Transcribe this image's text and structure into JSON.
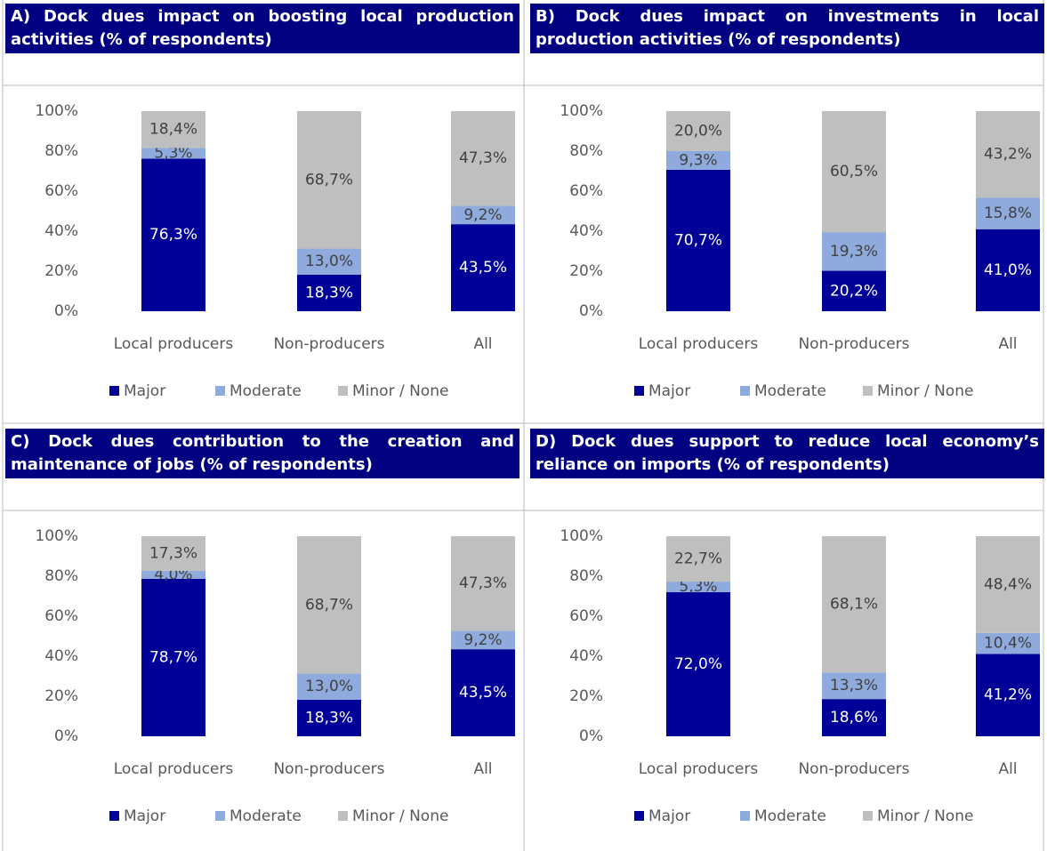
{
  "chart_data": [
    {
      "type": "bar",
      "stacked": true,
      "title": "A) Dock dues impact on boosting local production activities (% of respondents)",
      "categories": [
        "Local producers",
        "Non-producers",
        "All"
      ],
      "series": [
        {
          "name": "Major",
          "color": "#000099",
          "values": [
            76.3,
            18.3,
            43.5
          ],
          "value_labels": [
            "76,3%",
            "18,3%",
            "43,5%"
          ]
        },
        {
          "name": "Moderate",
          "color": "#8faadc",
          "values": [
            5.3,
            13.0,
            9.2
          ],
          "value_labels": [
            "5,3%",
            "13,0%",
            "9,2%"
          ]
        },
        {
          "name": "Minor / None",
          "color": "#bfbfbf",
          "values": [
            18.4,
            68.7,
            47.3
          ],
          "value_labels": [
            "18,4%",
            "68,7%",
            "47,3%"
          ]
        }
      ],
      "ylim": [
        0,
        100
      ],
      "yticks": [
        {
          "value": 0,
          "label": "0%"
        },
        {
          "value": 20,
          "label": "20%"
        },
        {
          "value": 40,
          "label": "40%"
        },
        {
          "value": 60,
          "label": "60%"
        },
        {
          "value": 80,
          "label": "80%"
        },
        {
          "value": 100,
          "label": "100%"
        }
      ],
      "legend": "bottom"
    },
    {
      "type": "bar",
      "stacked": true,
      "title": "B) Dock dues impact on investments in local production activities (% of respondents)",
      "categories": [
        "Local producers",
        "Non-producers",
        "All"
      ],
      "series": [
        {
          "name": "Major",
          "color": "#000099",
          "values": [
            70.7,
            20.2,
            41.0
          ],
          "value_labels": [
            "70,7%",
            "20,2%",
            "41,0%"
          ]
        },
        {
          "name": "Moderate",
          "color": "#8faadc",
          "values": [
            9.3,
            19.3,
            15.8
          ],
          "value_labels": [
            "9,3%",
            "19,3%",
            "15,8%"
          ]
        },
        {
          "name": "Minor / None",
          "color": "#bfbfbf",
          "values": [
            20.0,
            60.5,
            43.2
          ],
          "value_labels": [
            "20,0%",
            "60,5%",
            "43,2%"
          ]
        }
      ],
      "ylim": [
        0,
        100
      ],
      "yticks": [
        {
          "value": 0,
          "label": "0%"
        },
        {
          "value": 20,
          "label": "20%"
        },
        {
          "value": 40,
          "label": "40%"
        },
        {
          "value": 60,
          "label": "60%"
        },
        {
          "value": 80,
          "label": "80%"
        },
        {
          "value": 100,
          "label": "100%"
        }
      ],
      "legend": "bottom"
    },
    {
      "type": "bar",
      "stacked": true,
      "title": "C) Dock dues contribution to the creation and maintenance of jobs (% of respondents)",
      "categories": [
        "Local producers",
        "Non-producers",
        "All"
      ],
      "series": [
        {
          "name": "Major",
          "color": "#000099",
          "values": [
            78.7,
            18.3,
            43.5
          ],
          "value_labels": [
            "78,7%",
            "18,3%",
            "43,5%"
          ]
        },
        {
          "name": "Moderate",
          "color": "#8faadc",
          "values": [
            4.0,
            13.0,
            9.2
          ],
          "value_labels": [
            "4,0%",
            "13,0%",
            "9,2%"
          ]
        },
        {
          "name": "Minor / None",
          "color": "#bfbfbf",
          "values": [
            17.3,
            68.7,
            47.3
          ],
          "value_labels": [
            "17,3%",
            "68,7%",
            "47,3%"
          ]
        }
      ],
      "ylim": [
        0,
        100
      ],
      "yticks": [
        {
          "value": 0,
          "label": "0%"
        },
        {
          "value": 20,
          "label": "20%"
        },
        {
          "value": 40,
          "label": "40%"
        },
        {
          "value": 60,
          "label": "60%"
        },
        {
          "value": 80,
          "label": "80%"
        },
        {
          "value": 100,
          "label": "100%"
        }
      ],
      "legend": "bottom"
    },
    {
      "type": "bar",
      "stacked": true,
      "title": "D) Dock dues support to reduce local economy’s reliance on imports (% of respondents)",
      "categories": [
        "Local producers",
        "Non-producers",
        "All"
      ],
      "series": [
        {
          "name": "Major",
          "color": "#000099",
          "values": [
            72.0,
            18.6,
            41.2
          ],
          "value_labels": [
            "72,0%",
            "18,6%",
            "41,2%"
          ]
        },
        {
          "name": "Moderate",
          "color": "#8faadc",
          "values": [
            5.3,
            13.3,
            10.4
          ],
          "value_labels": [
            "5,3%",
            "13,3%",
            "10,4%"
          ]
        },
        {
          "name": "Minor / None",
          "color": "#bfbfbf",
          "values": [
            22.7,
            68.1,
            48.4
          ],
          "value_labels": [
            "22,7%",
            "68,1%",
            "48,4%"
          ]
        }
      ],
      "ylim": [
        0,
        100
      ],
      "yticks": [
        {
          "value": 0,
          "label": "0%"
        },
        {
          "value": 20,
          "label": "20%"
        },
        {
          "value": 40,
          "label": "40%"
        },
        {
          "value": 60,
          "label": "60%"
        },
        {
          "value": 80,
          "label": "80%"
        },
        {
          "value": 100,
          "label": "100%"
        }
      ],
      "legend": "bottom"
    }
  ]
}
